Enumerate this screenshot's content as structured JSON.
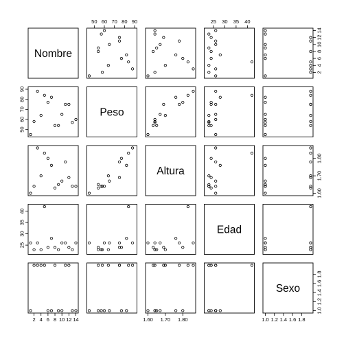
{
  "chart_data": {
    "type": "scatter",
    "subtype": "pairs-matrix",
    "variables": [
      {
        "name": "Nombre",
        "range": [
          1,
          14
        ],
        "ticks": [
          2,
          4,
          6,
          8,
          10,
          12,
          14
        ],
        "tick_labels": [
          "2",
          "4",
          "6",
          "8",
          "10",
          "12",
          "14"
        ]
      },
      {
        "name": "Peso",
        "range": [
          45,
          90
        ],
        "ticks": [
          50,
          60,
          70,
          80,
          90
        ],
        "tick_labels": [
          "50",
          "60",
          "70",
          "80",
          "90"
        ]
      },
      {
        "name": "Altura",
        "range": [
          1.6,
          1.86
        ],
        "ticks": [
          1.6,
          1.7,
          1.8
        ],
        "tick_labels": [
          "1.60",
          "1.70",
          "1.80"
        ]
      },
      {
        "name": "Edad",
        "range": [
          22,
          42
        ],
        "ticks": [
          25,
          30,
          35,
          40
        ],
        "tick_labels": [
          "25",
          "30",
          "35",
          "40"
        ]
      },
      {
        "name": "Sexo",
        "range": [
          1,
          2
        ],
        "ticks": [
          1.0,
          1.2,
          1.4,
          1.6,
          1.8
        ],
        "tick_labels": [
          "1.0",
          "1.2",
          "1.4",
          "1.6",
          "1.8"
        ]
      }
    ],
    "records": [
      {
        "Nombre": 1,
        "Peso": 45,
        "Altura": 1.6,
        "Edad": 26,
        "Sexo": 1
      },
      {
        "Nombre": 2,
        "Peso": 58,
        "Altura": 1.64,
        "Edad": 23,
        "Sexo": 2
      },
      {
        "Nombre": 3,
        "Peso": 88,
        "Altura": 1.86,
        "Edad": 26,
        "Sexo": 2
      },
      {
        "Nombre": 4,
        "Peso": 64,
        "Altura": 1.7,
        "Edad": 23,
        "Sexo": 2
      },
      {
        "Nombre": 5,
        "Peso": 84,
        "Altura": 1.83,
        "Edad": 42,
        "Sexo": 2
      },
      {
        "Nombre": 6,
        "Peso": 77,
        "Altura": 1.8,
        "Edad": 24,
        "Sexo": 1
      },
      {
        "Nombre": 7,
        "Peso": 82,
        "Altura": 1.76,
        "Edad": 28,
        "Sexo": 1
      },
      {
        "Nombre": 8,
        "Peso": 54,
        "Altura": 1.63,
        "Edad": 24,
        "Sexo": 2
      },
      {
        "Nombre": 9,
        "Peso": 54,
        "Altura": 1.65,
        "Edad": 23,
        "Sexo": 1
      },
      {
        "Nombre": 10,
        "Peso": 65,
        "Altura": 1.67,
        "Edad": 26,
        "Sexo": 1
      },
      {
        "Nombre": 11,
        "Peso": 75,
        "Altura": 1.78,
        "Edad": 26,
        "Sexo": 2
      },
      {
        "Nombre": 12,
        "Peso": 75,
        "Altura": 1.69,
        "Edad": 24,
        "Sexo": 2
      },
      {
        "Nombre": 13,
        "Peso": 57,
        "Altura": 1.64,
        "Edad": 23,
        "Sexo": 1
      },
      {
        "Nombre": 14,
        "Peso": 60,
        "Altura": 1.64,
        "Edad": 26,
        "Sexo": 1
      }
    ],
    "grid": false
  }
}
